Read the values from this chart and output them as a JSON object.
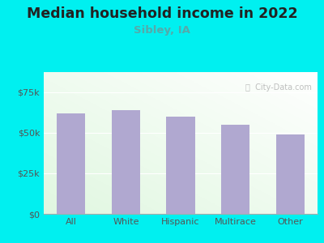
{
  "title": "Median household income in 2022",
  "subtitle": "Sibley, IA",
  "categories": [
    "All",
    "White",
    "Hispanic",
    "Multirace",
    "Other"
  ],
  "values": [
    62000,
    64000,
    60000,
    55000,
    49000
  ],
  "bar_color": "#b0a8d0",
  "background_outer": "#00f0f0",
  "title_fontsize": 12.5,
  "subtitle_fontsize": 9.5,
  "tick_fontsize": 8,
  "ylabel_color": "#555555",
  "title_color": "#222222",
  "subtitle_color": "#55aaaa",
  "watermark": "ⓘ  City-Data.com",
  "ylim": [
    0,
    87500
  ],
  "yticks": [
    0,
    25000,
    50000,
    75000
  ],
  "ytick_labels": [
    "$0",
    "$25k",
    "$50k",
    "$75k"
  ]
}
